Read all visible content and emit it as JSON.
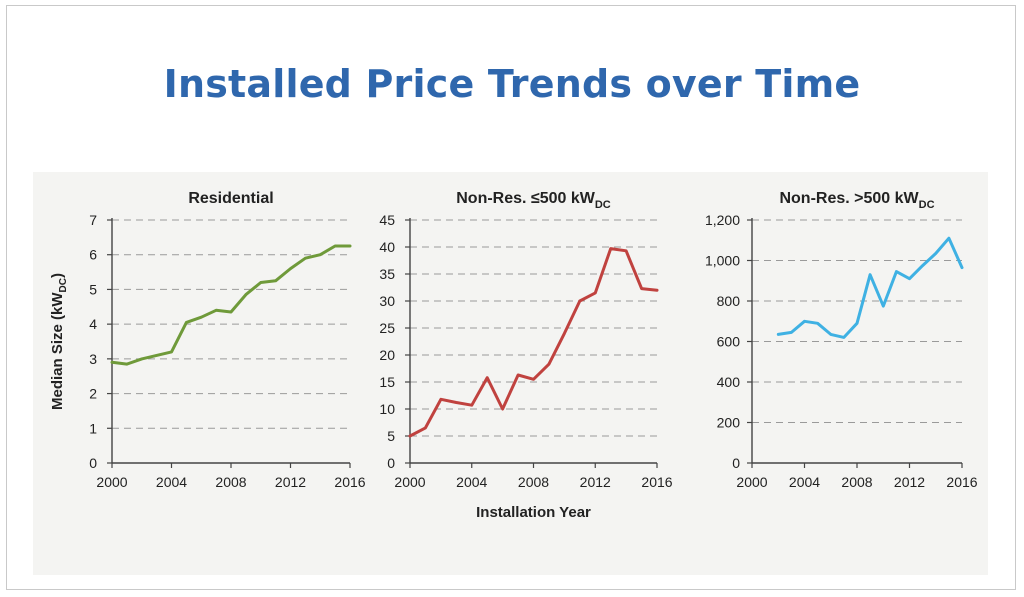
{
  "page": {
    "title": "Installed Price Trends over Time"
  },
  "chart_data": [
    {
      "type": "line",
      "title": "Residential",
      "title_subscript": "",
      "xlabel": "",
      "ylabel": "Median Size (kW",
      "ylabel_subscript": "DC",
      "ylabel_suffix": ")",
      "color": "#6f9a3a",
      "grid": true,
      "xlim": [
        2000,
        2016
      ],
      "ylim": [
        0,
        7
      ],
      "x_ticks": [
        2000,
        2004,
        2008,
        2012,
        2016
      ],
      "y_ticks": [
        0,
        1,
        2,
        3,
        4,
        5,
        6,
        7
      ],
      "y_tick_labels": [
        "0",
        "1",
        "2",
        "3",
        "4",
        "5",
        "6",
        "7"
      ],
      "x": [
        2000,
        2001,
        2002,
        2003,
        2004,
        2005,
        2006,
        2007,
        2008,
        2009,
        2010,
        2011,
        2012,
        2013,
        2014,
        2015,
        2016
      ],
      "values": [
        2.9,
        2.85,
        3.0,
        3.1,
        3.2,
        4.05,
        4.2,
        4.4,
        4.35,
        4.85,
        5.2,
        5.25,
        5.6,
        5.9,
        6.0,
        6.25,
        6.25
      ]
    },
    {
      "type": "line",
      "title": "Non-Res. ≤500 kW",
      "title_subscript": "DC",
      "xlabel": "Installation Year",
      "ylabel": "",
      "color": "#c0423f",
      "grid": true,
      "xlim": [
        2000,
        2016
      ],
      "ylim": [
        0,
        45
      ],
      "x_ticks": [
        2000,
        2004,
        2008,
        2012,
        2016
      ],
      "y_ticks": [
        0,
        5,
        10,
        15,
        20,
        25,
        30,
        35,
        40,
        45
      ],
      "y_tick_labels": [
        "0",
        "5",
        "10",
        "15",
        "20",
        "25",
        "30",
        "35",
        "40",
        "45"
      ],
      "x": [
        2000,
        2001,
        2002,
        2003,
        2004,
        2005,
        2006,
        2007,
        2008,
        2009,
        2010,
        2011,
        2012,
        2013,
        2014,
        2015,
        2016
      ],
      "values": [
        5.0,
        6.5,
        11.8,
        11.2,
        10.7,
        15.8,
        10.0,
        16.3,
        15.5,
        18.3,
        24.0,
        30.0,
        31.5,
        39.7,
        39.3,
        32.3,
        32.0
      ]
    },
    {
      "type": "line",
      "title": "Non-Res. >500 kW",
      "title_subscript": "DC",
      "xlabel": "",
      "ylabel": "",
      "color": "#3fb1e3",
      "grid": true,
      "xlim": [
        2000,
        2016
      ],
      "ylim": [
        0,
        1200
      ],
      "x_ticks": [
        2000,
        2004,
        2008,
        2012,
        2016
      ],
      "y_ticks": [
        0,
        200,
        400,
        600,
        800,
        1000,
        1200
      ],
      "y_tick_labels": [
        "0",
        "200",
        "400",
        "600",
        "800",
        "1,000",
        "1,200"
      ],
      "x": [
        2002,
        2003,
        2004,
        2005,
        2006,
        2007,
        2008,
        2009,
        2010,
        2011,
        2012,
        2013,
        2014,
        2015,
        2016
      ],
      "values": [
        635,
        645,
        700,
        690,
        635,
        620,
        690,
        930,
        775,
        945,
        910,
        975,
        1035,
        1110,
        965
      ]
    }
  ]
}
